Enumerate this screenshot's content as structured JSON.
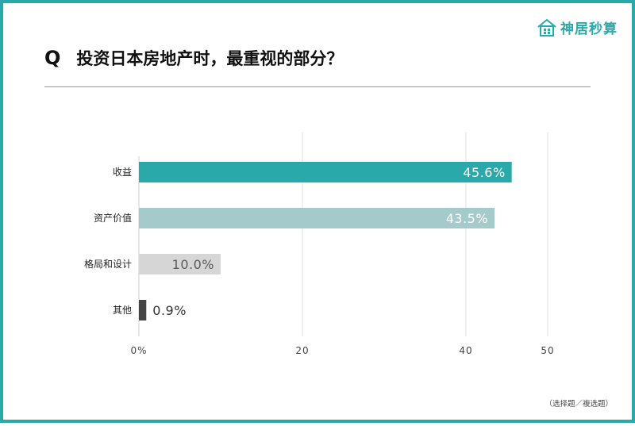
{
  "brand": {
    "name": "神居秒算",
    "icon": "house-icon",
    "color": "#2aa9aa"
  },
  "question": {
    "mark": "Q",
    "text": "投资日本房地产时，最重视的部分？"
  },
  "note": "（选择题／複选题）",
  "chart_data": {
    "type": "bar",
    "orientation": "horizontal",
    "categories": [
      "收益",
      "资产价值",
      "格局和设计",
      "其他"
    ],
    "values": [
      45.6,
      43.5,
      10.0,
      0.9
    ],
    "value_labels": [
      "45.6%",
      "43.5%",
      "10.0%",
      "0.9%"
    ],
    "colors": [
      "#2aa9aa",
      "#a5cacb",
      "#d6d6d6",
      "#444444"
    ],
    "xlim": [
      0,
      50
    ],
    "ticks": [
      0,
      20,
      40,
      50
    ],
    "tick_labels": [
      "0%",
      "20",
      "40",
      "50"
    ],
    "grid": true
  }
}
